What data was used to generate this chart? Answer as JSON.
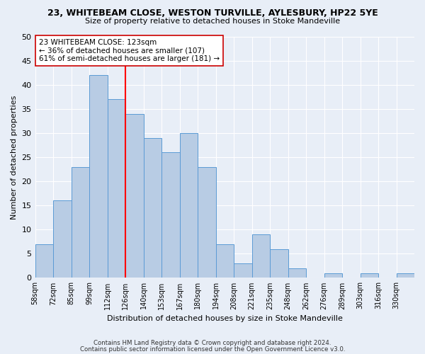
{
  "title1": "23, WHITEBEAM CLOSE, WESTON TURVILLE, AYLESBURY, HP22 5YE",
  "title2": "Size of property relative to detached houses in Stoke Mandeville",
  "xlabel": "Distribution of detached houses by size in Stoke Mandeville",
  "ylabel": "Number of detached properties",
  "bin_labels": [
    "58sqm",
    "72sqm",
    "85sqm",
    "99sqm",
    "112sqm",
    "126sqm",
    "140sqm",
    "153sqm",
    "167sqm",
    "180sqm",
    "194sqm",
    "208sqm",
    "221sqm",
    "235sqm",
    "248sqm",
    "262sqm",
    "276sqm",
    "289sqm",
    "303sqm",
    "316sqm",
    "330sqm"
  ],
  "values": [
    7,
    16,
    23,
    42,
    37,
    34,
    29,
    26,
    30,
    23,
    7,
    3,
    9,
    6,
    2,
    0,
    1,
    0,
    1,
    0,
    1
  ],
  "bar_color": "#b8cce4",
  "bar_edgecolor": "#5b9bd5",
  "reference_line_index": 5,
  "reference_line_color": "red",
  "annotation_box_text": "23 WHITEBEAM CLOSE: 123sqm\n← 36% of detached houses are smaller (107)\n61% of semi-detached houses are larger (181) →",
  "ylim": [
    0,
    50
  ],
  "yticks": [
    0,
    5,
    10,
    15,
    20,
    25,
    30,
    35,
    40,
    45,
    50
  ],
  "footer1": "Contains HM Land Registry data © Crown copyright and database right 2024.",
  "footer2": "Contains public sector information licensed under the Open Government Licence v3.0.",
  "bg_color": "#e8eef7"
}
